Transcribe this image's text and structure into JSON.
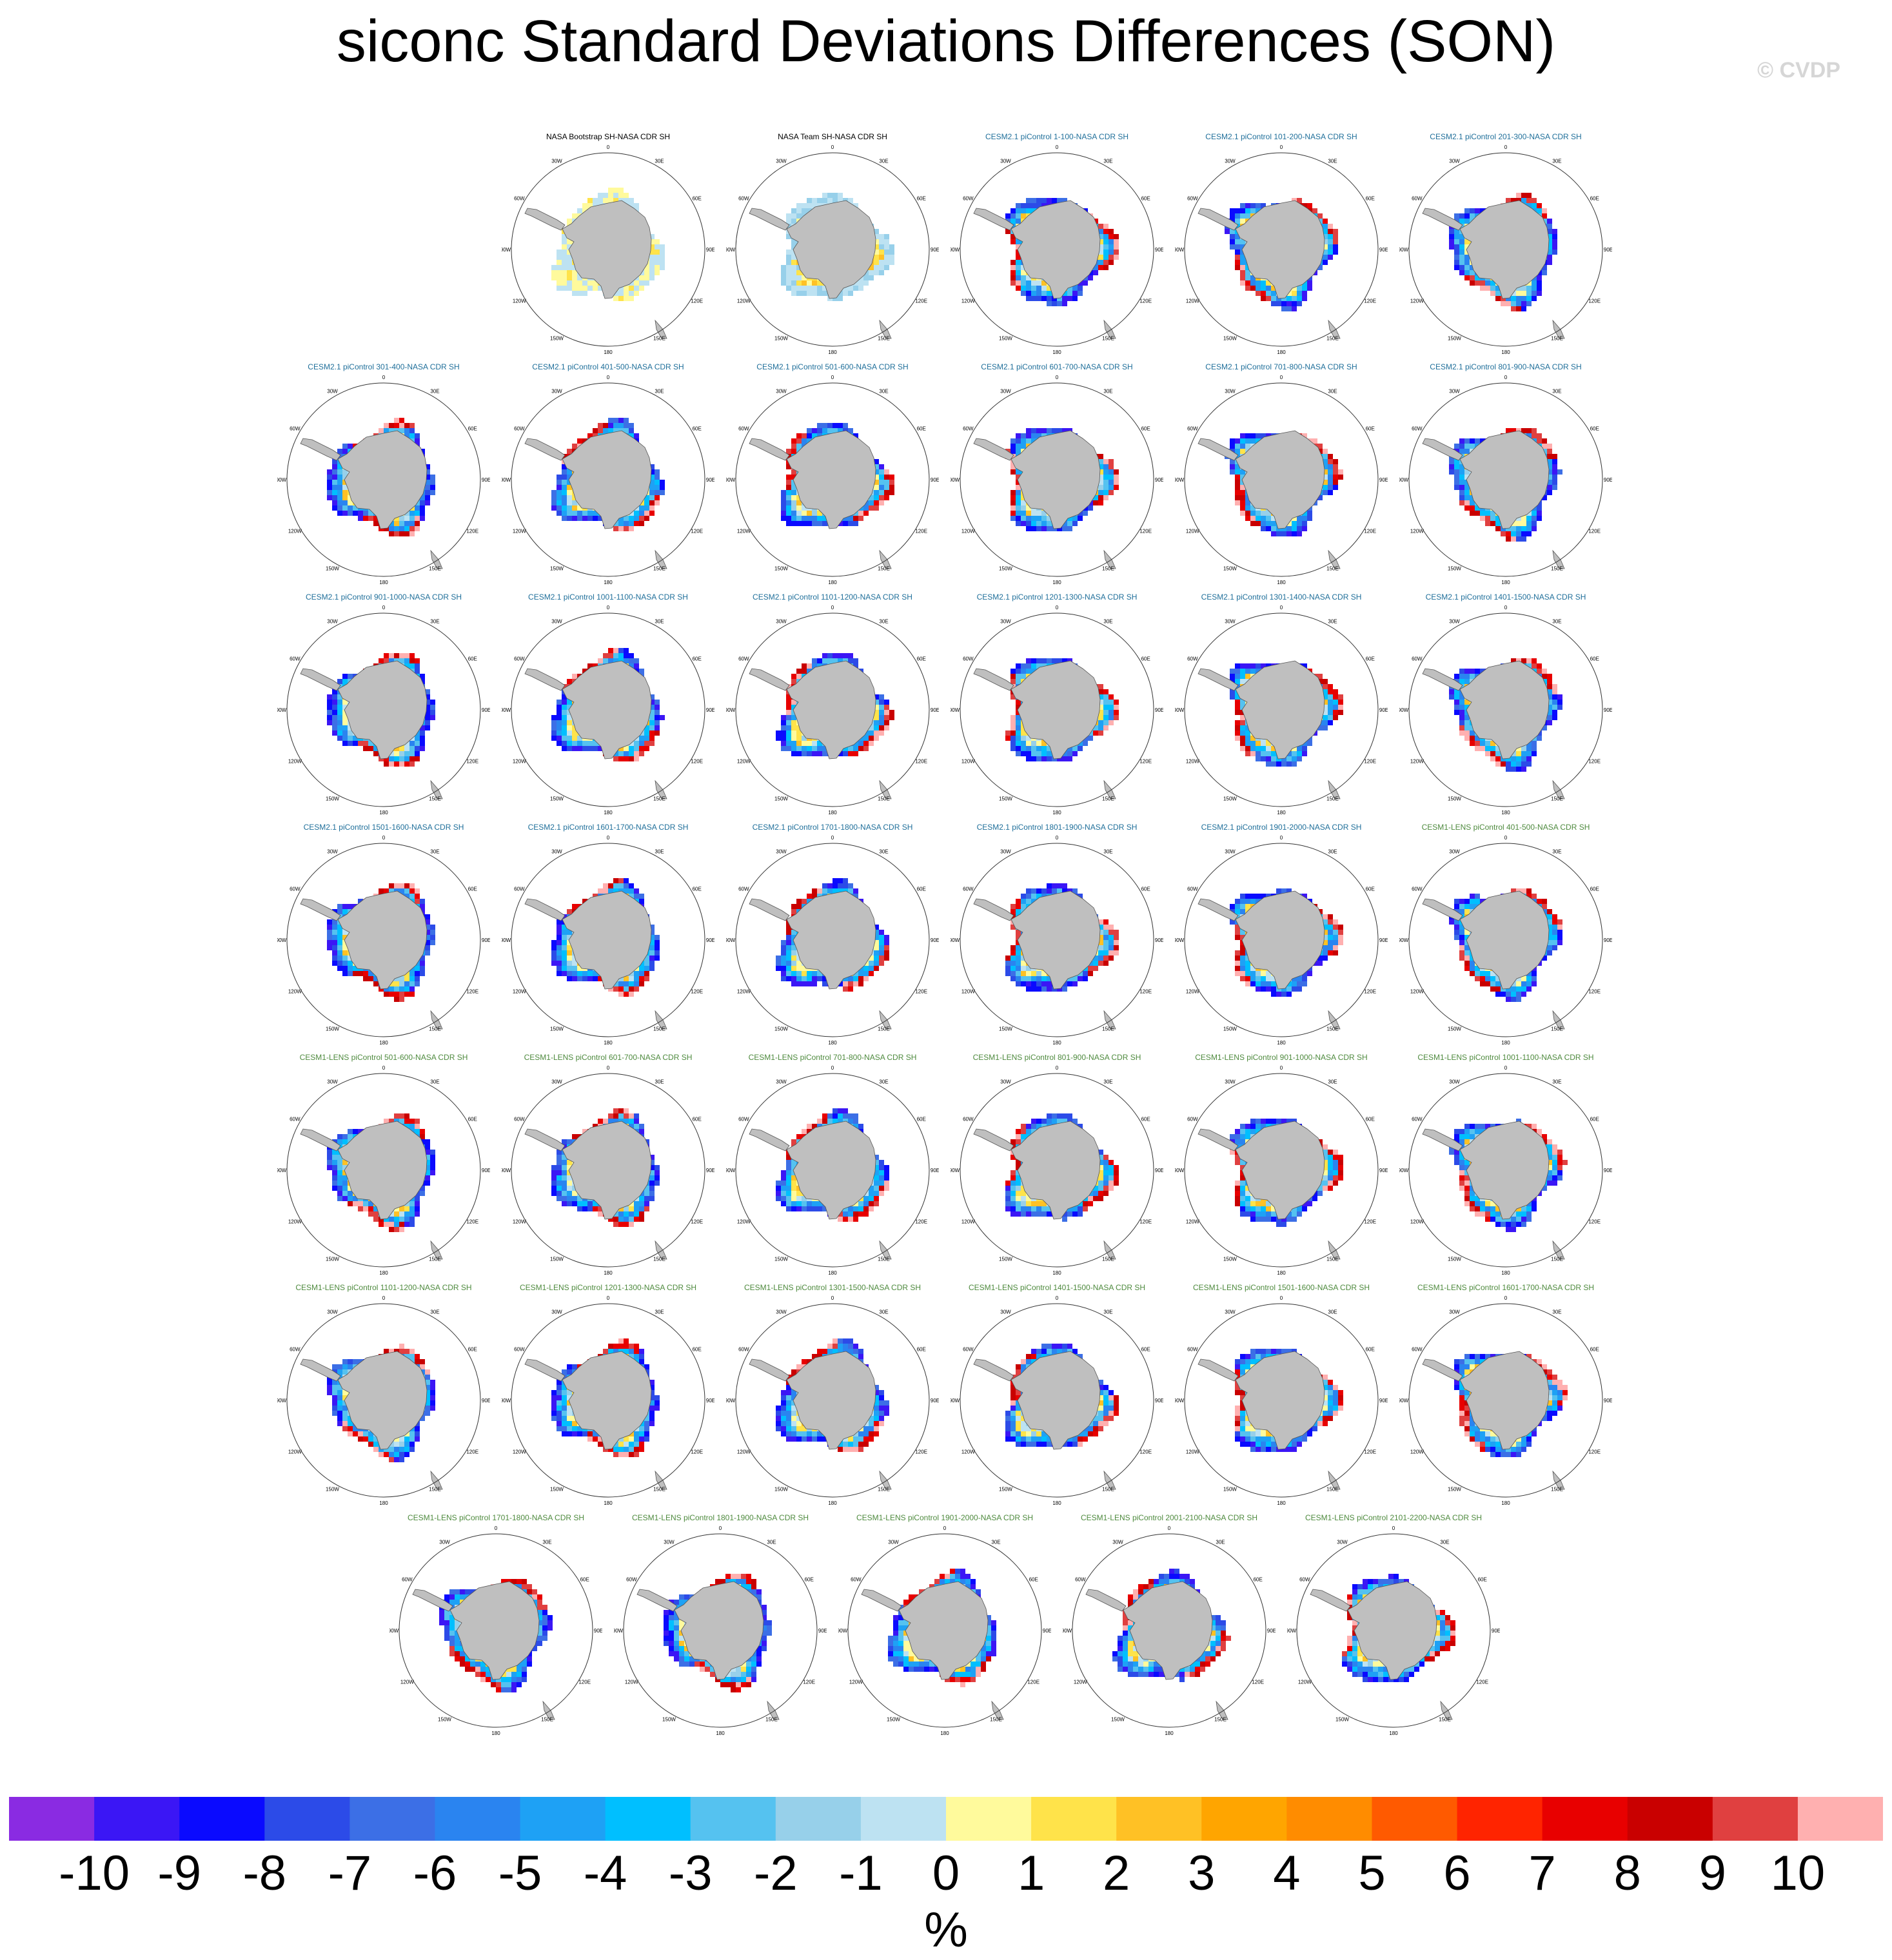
{
  "title": "siconc Standard Deviations Differences (SON)",
  "watermark": "© CVDP",
  "colors": {
    "land": "#bfbfbf",
    "obs_title": "#000000",
    "cesm2_title": "#1f6f9a",
    "cesm1_title": "#4e8a3e"
  },
  "chart_data": {
    "type": "heatmap",
    "projection": "south-polar-stereographic",
    "lon_labels": [
      "0",
      "30E",
      "60E",
      "90E",
      "120E",
      "150E",
      "180",
      "150W",
      "120W",
      "90W",
      "60W",
      "30W"
    ],
    "panels": [
      {
        "title": "NASA Bootstrap SH-NASA CDR SH",
        "group": "obs"
      },
      {
        "title": "NASA Team SH-NASA CDR SH",
        "group": "obs"
      },
      {
        "title": "CESM2.1 piControl 1-100-NASA CDR SH",
        "group": "cesm2"
      },
      {
        "title": "CESM2.1 piControl 101-200-NASA CDR SH",
        "group": "cesm2"
      },
      {
        "title": "CESM2.1 piControl 201-300-NASA CDR SH",
        "group": "cesm2"
      },
      {
        "title": "CESM2.1 piControl 301-400-NASA CDR SH",
        "group": "cesm2"
      },
      {
        "title": "CESM2.1 piControl 401-500-NASA CDR SH",
        "group": "cesm2"
      },
      {
        "title": "CESM2.1 piControl 501-600-NASA CDR SH",
        "group": "cesm2"
      },
      {
        "title": "CESM2.1 piControl 601-700-NASA CDR SH",
        "group": "cesm2"
      },
      {
        "title": "CESM2.1 piControl 701-800-NASA CDR SH",
        "group": "cesm2"
      },
      {
        "title": "CESM2.1 piControl 801-900-NASA CDR SH",
        "group": "cesm2"
      },
      {
        "title": "CESM2.1 piControl 901-1000-NASA CDR SH",
        "group": "cesm2"
      },
      {
        "title": "CESM2.1 piControl 1001-1100-NASA CDR SH",
        "group": "cesm2"
      },
      {
        "title": "CESM2.1 piControl 1101-1200-NASA CDR SH",
        "group": "cesm2"
      },
      {
        "title": "CESM2.1 piControl 1201-1300-NASA CDR SH",
        "group": "cesm2"
      },
      {
        "title": "CESM2.1 piControl 1301-1400-NASA CDR SH",
        "group": "cesm2"
      },
      {
        "title": "CESM2.1 piControl 1401-1500-NASA CDR SH",
        "group": "cesm2"
      },
      {
        "title": "CESM2.1 piControl 1501-1600-NASA CDR SH",
        "group": "cesm2"
      },
      {
        "title": "CESM2.1 piControl 1601-1700-NASA CDR SH",
        "group": "cesm2"
      },
      {
        "title": "CESM2.1 piControl 1701-1800-NASA CDR SH",
        "group": "cesm2"
      },
      {
        "title": "CESM2.1 piControl 1801-1900-NASA CDR SH",
        "group": "cesm2"
      },
      {
        "title": "CESM2.1 piControl 1901-2000-NASA CDR SH",
        "group": "cesm2"
      },
      {
        "title": "CESM1-LENS piControl 401-500-NASA CDR SH",
        "group": "cesm1"
      },
      {
        "title": "CESM1-LENS piControl 501-600-NASA CDR SH",
        "group": "cesm1"
      },
      {
        "title": "CESM1-LENS piControl 601-700-NASA CDR SH",
        "group": "cesm1"
      },
      {
        "title": "CESM1-LENS piControl 701-800-NASA CDR SH",
        "group": "cesm1"
      },
      {
        "title": "CESM1-LENS piControl 801-900-NASA CDR SH",
        "group": "cesm1"
      },
      {
        "title": "CESM1-LENS piControl 901-1000-NASA CDR SH",
        "group": "cesm1"
      },
      {
        "title": "CESM1-LENS piControl 1001-1100-NASA CDR SH",
        "group": "cesm1"
      },
      {
        "title": "CESM1-LENS piControl 1101-1200-NASA CDR SH",
        "group": "cesm1"
      },
      {
        "title": "CESM1-LENS piControl 1201-1300-NASA CDR SH",
        "group": "cesm1"
      },
      {
        "title": "CESM1-LENS piControl 1301-1500-NASA CDR SH",
        "group": "cesm1"
      },
      {
        "title": "CESM1-LENS piControl 1401-1500-NASA CDR SH",
        "group": "cesm1"
      },
      {
        "title": "CESM1-LENS piControl 1501-1600-NASA CDR SH",
        "group": "cesm1"
      },
      {
        "title": "CESM1-LENS piControl 1601-1700-NASA CDR SH",
        "group": "cesm1"
      },
      {
        "title": "CESM1-LENS piControl 1701-1800-NASA CDR SH",
        "group": "cesm1"
      },
      {
        "title": "CESM1-LENS piControl 1801-1900-NASA CDR SH",
        "group": "cesm1"
      },
      {
        "title": "CESM1-LENS piControl 1901-2000-NASA CDR SH",
        "group": "cesm1"
      },
      {
        "title": "CESM1-LENS piControl 2001-2100-NASA CDR SH",
        "group": "cesm1"
      },
      {
        "title": "CESM1-LENS piControl 2101-2200-NASA CDR SH",
        "group": "cesm1"
      }
    ],
    "colorbar": {
      "colors": [
        "#8a2be2",
        "#3b16f5",
        "#0a0aff",
        "#2c4be8",
        "#3c6fe6",
        "#2a84f0",
        "#1ea1f5",
        "#00bfff",
        "#55c2f0",
        "#97d0ea",
        "#bde2f2",
        "#fffa9c",
        "#ffe34a",
        "#ffc125",
        "#ffa500",
        "#ff8c00",
        "#ff5a00",
        "#ff2400",
        "#e80000",
        "#c90000",
        "#e04040",
        "#ffb0b0"
      ],
      "labels": [
        "-10",
        "-9",
        "-8",
        "-7",
        "-6",
        "-5",
        "-4",
        "-3",
        "-2",
        "-1",
        "0",
        "1",
        "2",
        "3",
        "4",
        "5",
        "6",
        "7",
        "8",
        "9",
        "10"
      ],
      "units": "%"
    }
  }
}
